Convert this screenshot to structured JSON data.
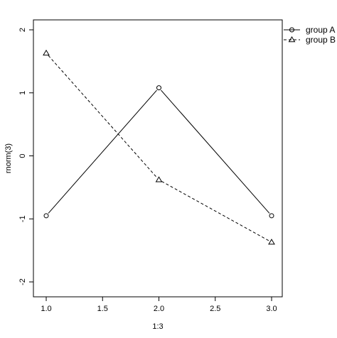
{
  "chart_data": {
    "type": "line",
    "x": [
      1.0,
      2.0,
      3.0
    ],
    "series": [
      {
        "name": "group A",
        "values": [
          -0.95,
          1.08,
          -0.95
        ],
        "line_style": "solid",
        "marker": "circle"
      },
      {
        "name": "group B",
        "values": [
          1.63,
          -0.38,
          -1.37
        ],
        "line_style": "dashed",
        "marker": "triangle"
      }
    ],
    "xlabel": "1:3",
    "ylabel": "rnorm(3)",
    "xlim": [
      1.0,
      3.0
    ],
    "ylim": [
      -2,
      2
    ],
    "x_ticks": [
      1.0,
      1.5,
      2.0,
      2.5,
      3.0
    ],
    "x_tick_labels": [
      "1.0",
      "1.5",
      "2.0",
      "2.5",
      "3.0"
    ],
    "y_ticks": [
      -2,
      -1,
      0,
      1,
      2
    ],
    "y_tick_labels": [
      "-2",
      "-1",
      "0",
      "1",
      "2"
    ],
    "grid": false,
    "legend_position": "top-right"
  }
}
